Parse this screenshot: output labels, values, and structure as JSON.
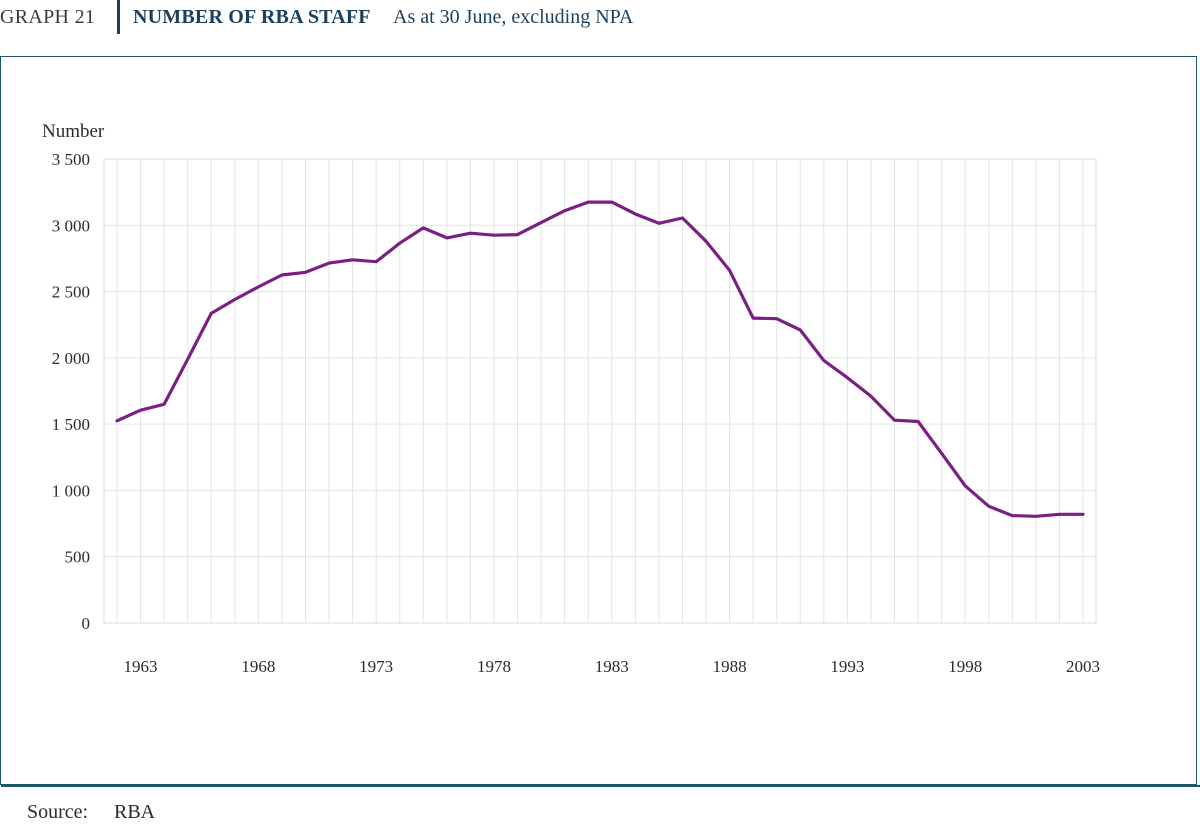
{
  "header": {
    "graph_number": "GRAPH 21",
    "title": "NUMBER OF RBA STAFF",
    "subtitle": "As at 30 June, excluding NPA"
  },
  "source": {
    "label": "Source:",
    "value": "RBA"
  },
  "colors": {
    "line": "#7b1f84",
    "grid": "#e3e3e3",
    "frame": "#1b5568",
    "title": "#1b3f5e"
  },
  "chart_data": {
    "type": "line",
    "title": "NUMBER OF RBA STAFF",
    "subtitle": "As at 30 June, excluding NPA",
    "xlabel": "",
    "ylabel": "Number",
    "ylim": [
      0,
      3500
    ],
    "xlim": [
      1962,
      2003
    ],
    "yticks": [
      0,
      500,
      1000,
      1500,
      2000,
      2500,
      3000,
      3500
    ],
    "ytick_labels": [
      "0",
      "500",
      "1 000",
      "1 500",
      "2 000",
      "2 500",
      "3 000",
      "3 500"
    ],
    "xticks": [
      1963,
      1968,
      1973,
      1978,
      1983,
      1988,
      1993,
      1998,
      2003
    ],
    "xtick_labels": [
      "1963",
      "1968",
      "1973",
      "1978",
      "1983",
      "1988",
      "1993",
      "1998",
      "2003"
    ],
    "grid": true,
    "series": [
      {
        "name": "RBA staff",
        "x": [
          1962,
          1963,
          1964,
          1965,
          1966,
          1967,
          1968,
          1969,
          1970,
          1971,
          1972,
          1973,
          1974,
          1975,
          1976,
          1977,
          1978,
          1979,
          1980,
          1981,
          1982,
          1983,
          1984,
          1985,
          1986,
          1987,
          1988,
          1989,
          1990,
          1991,
          1992,
          1993,
          1994,
          1995,
          1996,
          1997,
          1998,
          1999,
          2000,
          2001,
          2002,
          2003
        ],
        "values": [
          1525,
          1605,
          1650,
          1990,
          2335,
          2440,
          2535,
          2625,
          2645,
          2715,
          2740,
          2725,
          2865,
          2980,
          2905,
          2940,
          2925,
          2930,
          3020,
          3110,
          3175,
          3175,
          3085,
          3015,
          3055,
          2880,
          2660,
          2300,
          2295,
          2210,
          1980,
          1850,
          1710,
          1530,
          1520,
          1280,
          1035,
          880,
          810,
          805,
          820,
          820
        ]
      }
    ]
  }
}
